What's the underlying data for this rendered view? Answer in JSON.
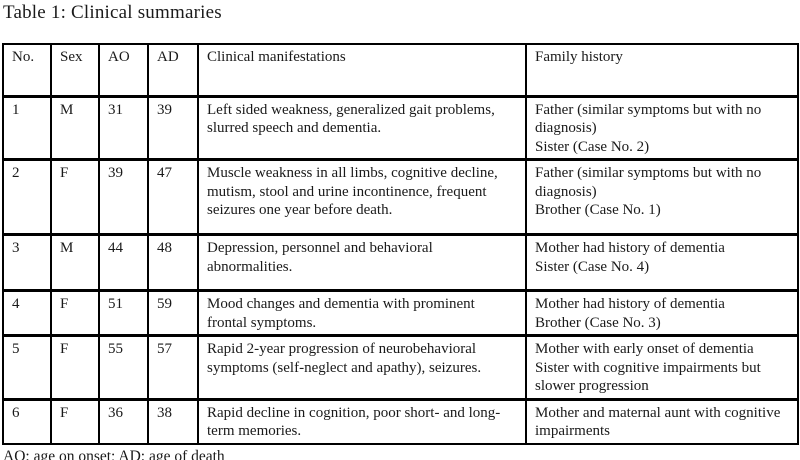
{
  "title": "Table 1: Clinical summaries",
  "footnote": "AO: age on onset; AD: age of death",
  "table": {
    "headers": [
      "No.",
      "Sex",
      "AO",
      "AD",
      "Clinical manifestations",
      "Family history"
    ],
    "rows": [
      {
        "no": "1",
        "sex": "M",
        "ao": "31",
        "ad": "39",
        "clinical": "Left sided weakness, generalized gait problems, slurred speech and dementia.",
        "family": [
          "Father (similar symptoms but with no diagnosis)",
          "Sister (Case No. 2)"
        ]
      },
      {
        "no": "2",
        "sex": "F",
        "ao": "39",
        "ad": "47",
        "clinical": "Muscle weakness in all limbs, cognitive decline, mutism, stool and urine incontinence, frequent seizures one year before death.",
        "family": [
          "Father (similar symptoms but with no diagnosis)",
          "Brother (Case No. 1)"
        ]
      },
      {
        "no": "3",
        "sex": "M",
        "ao": "44",
        "ad": "48",
        "clinical": "Depression, personnel and behavioral abnormalities.",
        "family": [
          "Mother had history of dementia",
          "Sister (Case No. 4)"
        ]
      },
      {
        "no": "4",
        "sex": "F",
        "ao": "51",
        "ad": "59",
        "clinical": "Mood changes and dementia with prominent frontal symptoms.",
        "family": [
          "Mother had history of dementia",
          "Brother (Case No. 3)"
        ]
      },
      {
        "no": "5",
        "sex": "F",
        "ao": "55",
        "ad": "57",
        "clinical": "Rapid 2-year progression of neurobehavioral symptoms (self-neglect and apathy), seizures.",
        "family": [
          "Mother with early onset of dementia",
          "Sister with cognitive impairments but slower progression"
        ]
      },
      {
        "no": "6",
        "sex": "F",
        "ao": "36",
        "ad": "38",
        "clinical": "Rapid decline in cognition, poor short- and long-term memories.",
        "family": [
          "Mother and maternal aunt with cognitive impairments"
        ]
      }
    ]
  }
}
